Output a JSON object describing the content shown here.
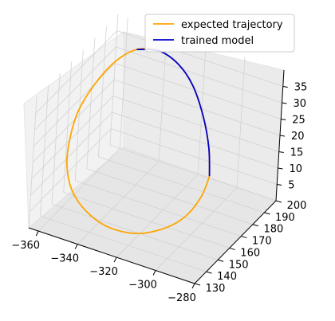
{
  "chart_data": {
    "type": "line",
    "projection": "3d",
    "grid": true,
    "legend_position": "top-right",
    "x_ticks": [
      "−360",
      "−340",
      "−320",
      "−300",
      "−280"
    ],
    "y_ticks": [
      "130",
      "140",
      "150",
      "160",
      "170",
      "180",
      "190",
      "200"
    ],
    "z_ticks": [
      "5",
      "10",
      "15",
      "20",
      "25",
      "30",
      "35"
    ],
    "series": [
      {
        "name": "expected trajectory",
        "color": "#ffa500",
        "points": [
          [
            -301,
            176,
            12
          ],
          [
            -300,
            168,
            9
          ],
          [
            -302,
            158,
            6
          ],
          [
            -308,
            150,
            4
          ],
          [
            -318,
            143,
            3
          ],
          [
            -330,
            139,
            4
          ],
          [
            -341,
            138,
            7
          ],
          [
            -350,
            140,
            11
          ],
          [
            -356,
            145,
            16
          ],
          [
            -359,
            152,
            21
          ],
          [
            -360,
            160,
            26
          ],
          [
            -358,
            170,
            31
          ],
          [
            -354,
            180,
            35
          ],
          [
            -348,
            188,
            37
          ],
          [
            -340,
            194,
            36
          ],
          [
            -331,
            196,
            33
          ],
          [
            -322,
            194,
            29
          ],
          [
            -313,
            189,
            23
          ],
          [
            -306,
            183,
            17
          ],
          [
            -301,
            176,
            12
          ]
        ]
      },
      {
        "name": "trained model",
        "color": "#0000cd",
        "points": [
          [
            -348,
            188,
            37
          ],
          [
            -340,
            194,
            36
          ],
          [
            -331,
            196,
            33
          ],
          [
            -322,
            194,
            29
          ],
          [
            -313,
            189,
            23
          ],
          [
            -306,
            183,
            17
          ],
          [
            -301,
            176,
            12
          ]
        ]
      }
    ]
  }
}
